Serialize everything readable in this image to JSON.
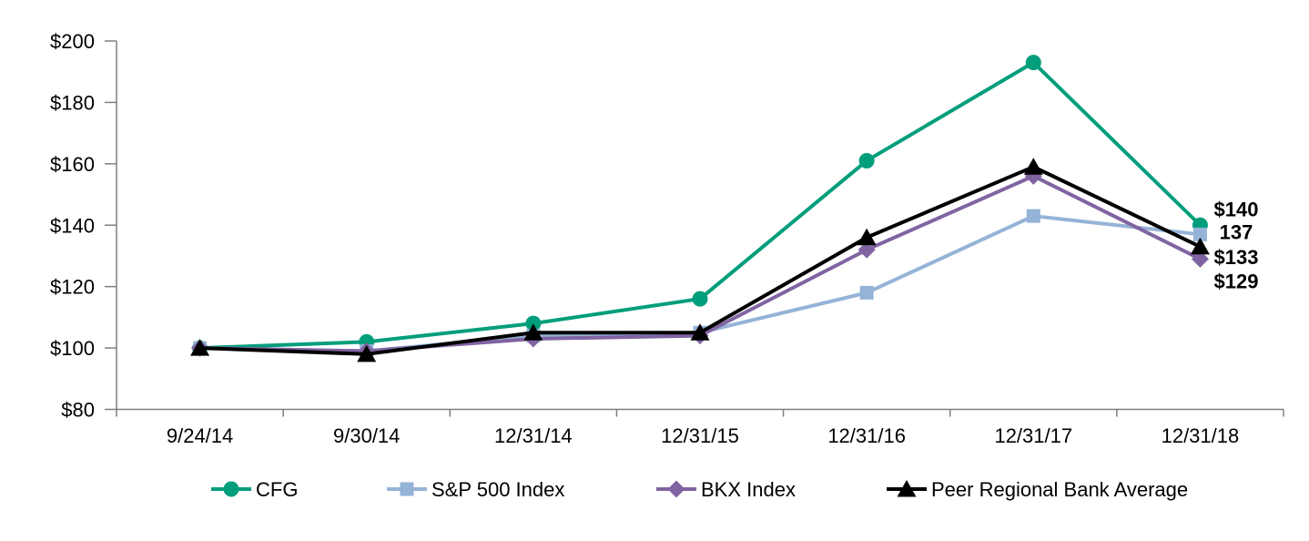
{
  "chart_data": {
    "type": "line",
    "title": "",
    "xlabel": "",
    "ylabel": "",
    "categories": [
      "9/24/14",
      "9/30/14",
      "12/31/14",
      "12/31/15",
      "12/31/16",
      "12/31/17",
      "12/31/18"
    ],
    "y_axis": {
      "tick_labels": [
        "$200",
        "$180",
        "$160",
        "$140",
        "$120",
        "$100",
        "$80"
      ],
      "min": 80,
      "max": 200,
      "tick_step": 20
    },
    "grid": false,
    "legend_position": "bottom",
    "axis_color": "#7F7F7F",
    "series": [
      {
        "name": "CFG",
        "marker": "circle",
        "color": "#009E7B",
        "label_color": "#009E7B",
        "end_label": "$140",
        "values": [
          100,
          102,
          108,
          116,
          161,
          193,
          140
        ]
      },
      {
        "name": "S&P 500 Index",
        "marker": "square",
        "color": "#95B3D7",
        "label_color": "#7C96CD",
        "end_label": "137",
        "values": [
          100,
          99,
          104,
          105,
          118,
          143,
          137
        ]
      },
      {
        "name": "BKX Index",
        "marker": "diamond",
        "color": "#8064A2",
        "label_color": "#7A3DA0",
        "end_label": "$129",
        "values": [
          100,
          99,
          103,
          104,
          132,
          156,
          129
        ]
      },
      {
        "name": "Peer Regional Bank Average",
        "marker": "triangle",
        "color": "#000000",
        "label_color": "#000000",
        "end_label": "$133",
        "values": [
          100,
          98,
          105,
          105,
          136,
          159,
          133
        ]
      }
    ]
  }
}
